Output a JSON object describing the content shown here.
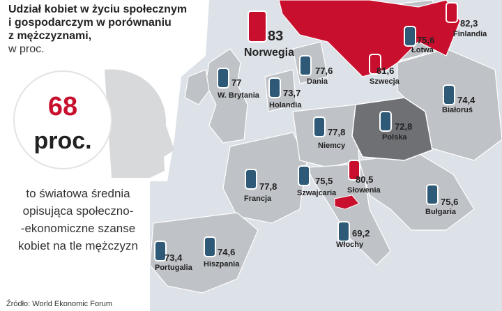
{
  "header": {
    "title_lines": [
      "Udział kobiet w życiu społecznym",
      "i gospodarczym w porównaniu",
      "z mężczyznami,"
    ],
    "unit": "w proc."
  },
  "highlight": {
    "value": "68",
    "unit": "proc.",
    "caption_lines": [
      "to światowa średnia",
      "opisująca społeczno-",
      "-ekonomiczne szanse",
      "kobiet na tle mężczyzn"
    ]
  },
  "map": {
    "countries": [
      {
        "name": "Norwegia",
        "value": "83",
        "color": "#c8102e"
      },
      {
        "name": "Finlandia",
        "value": "82,3",
        "color": "#c8102e"
      },
      {
        "name": "Łotwa",
        "value": "75,6",
        "color": "#2e5a78"
      },
      {
        "name": "Szwecja",
        "value": "81,6",
        "color": "#c8102e"
      },
      {
        "name": "Dania",
        "value": "77,6",
        "color": "#2e5a78"
      },
      {
        "name": "W. Brytania",
        "value": "77",
        "color": "#2e5a78"
      },
      {
        "name": "Holandia",
        "value": "73,7",
        "color": "#2e5a78"
      },
      {
        "name": "Białoruś",
        "value": "74,4",
        "color": "#2e5a78"
      },
      {
        "name": "Polska",
        "value": "72,8",
        "color": "#2e5a78"
      },
      {
        "name": "Niemcy",
        "value": "77,8",
        "color": "#2e5a78"
      },
      {
        "name": "Francja",
        "value": "77,8",
        "color": "#2e5a78"
      },
      {
        "name": "Szwajcaria",
        "value": "75,5",
        "color": "#2e5a78"
      },
      {
        "name": "Słowenia",
        "value": "80,5",
        "color": "#c8102e"
      },
      {
        "name": "Bułgaria",
        "value": "75,6",
        "color": "#2e5a78"
      },
      {
        "name": "Włochy",
        "value": "69,2",
        "color": "#2e5a78"
      },
      {
        "name": "Portugalia",
        "value": "73,4",
        "color": "#2e5a78"
      },
      {
        "name": "Hiszpania",
        "value": "74,6",
        "color": "#2e5a78"
      }
    ]
  },
  "source": "Źródło: World Ekonomic Forum"
}
